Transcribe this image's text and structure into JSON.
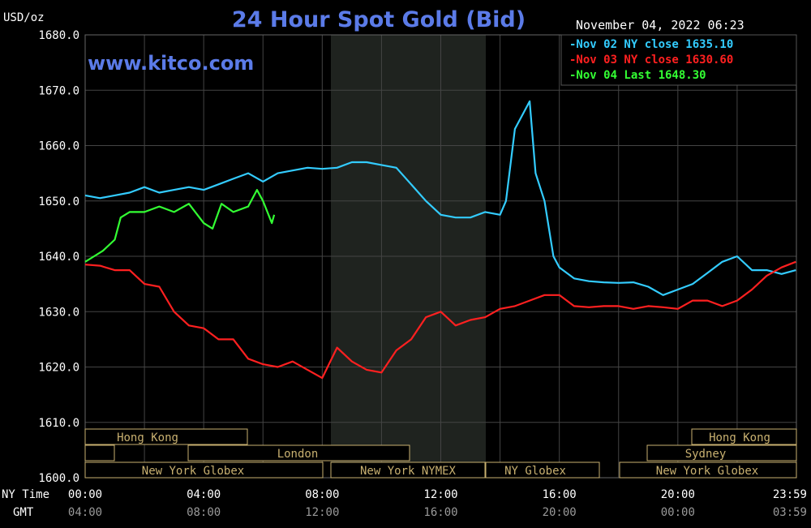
{
  "chart_data": {
    "type": "line",
    "title": "24 Hour Spot Gold (Bid)",
    "unit_label": "USD/oz",
    "watermark": "www.kitco.com",
    "timestamp": "November 04, 2022 06:23",
    "ylim": [
      1600,
      1680
    ],
    "yticks": [
      "1680.0",
      "1670.0",
      "1660.0",
      "1650.0",
      "1640.0",
      "1630.0",
      "1620.0",
      "1610.0",
      "1600.0"
    ],
    "x_row_labels": {
      "ny": "NY Time",
      "gmt": "GMT"
    },
    "xticks_ny": [
      "00:00",
      "04:00",
      "08:00",
      "12:00",
      "16:00",
      "20:00",
      "23:59"
    ],
    "xticks_gmt": [
      "04:00",
      "08:00",
      "12:00",
      "16:00",
      "20:00",
      "00:00",
      "03:59"
    ],
    "legend": [
      {
        "text": "Nov 02 NY close 1635.10",
        "color": "#33ccff"
      },
      {
        "text": "Nov 03 NY close 1630.60",
        "color": "#ff2020"
      },
      {
        "text": "Nov 04 Last 1648.30",
        "color": "#33ff33"
      }
    ],
    "series": [
      {
        "name": "Nov 02",
        "color": "#33ccff",
        "x": [
          0,
          0.5,
          1,
          1.5,
          2,
          2.5,
          3,
          3.5,
          4,
          4.5,
          5,
          5.5,
          6,
          6.5,
          7,
          7.5,
          8,
          8.5,
          9,
          9.5,
          10,
          10.5,
          11,
          11.5,
          12,
          12.5,
          13,
          13.5,
          14,
          14.2,
          14.5,
          14.8,
          15,
          15.2,
          15.5,
          15.8,
          16,
          16.5,
          17,
          17.5,
          18,
          18.5,
          19,
          19.5,
          20,
          20.5,
          21,
          21.5,
          22,
          22.5,
          23,
          23.5,
          23.98
        ],
        "values": [
          1651,
          1650.5,
          1651,
          1651.5,
          1652.5,
          1651.5,
          1652,
          1652.5,
          1652,
          1653,
          1654,
          1655,
          1653.5,
          1655,
          1655.5,
          1656,
          1655.8,
          1656,
          1657,
          1657,
          1656.5,
          1656,
          1653,
          1650,
          1647.5,
          1647,
          1647,
          1648,
          1647.5,
          1650,
          1663,
          1666,
          1668,
          1655,
          1650,
          1640,
          1638,
          1636,
          1635.5,
          1635.3,
          1635.2,
          1635.3,
          1634.5,
          1633,
          1634,
          1635,
          1637,
          1639,
          1640,
          1637.5,
          1637.5,
          1636.8,
          1637.5
        ]
      },
      {
        "name": "Nov 03",
        "color": "#ff2020",
        "x": [
          0,
          0.5,
          1,
          1.5,
          2,
          2.5,
          3,
          3.5,
          4,
          4.5,
          5,
          5.5,
          6,
          6.5,
          7,
          7.5,
          8,
          8.5,
          9,
          9.5,
          10,
          10.5,
          11,
          11.5,
          12,
          12.5,
          13,
          13.5,
          14,
          14.5,
          15,
          15.5,
          16,
          16.5,
          17,
          17.5,
          18,
          18.5,
          19,
          19.5,
          20,
          20.5,
          21,
          21.5,
          22,
          22.5,
          23,
          23.5,
          23.98
        ],
        "values": [
          1638.5,
          1638.3,
          1637.5,
          1637.5,
          1635,
          1634.5,
          1630,
          1627.5,
          1627,
          1625,
          1625,
          1621.5,
          1620.5,
          1620,
          1621,
          1619.5,
          1618,
          1623.5,
          1621,
          1619.5,
          1619,
          1623,
          1625,
          1629,
          1630,
          1627.5,
          1628.5,
          1629,
          1630.5,
          1631,
          1632,
          1633,
          1633,
          1631,
          1630.8,
          1631,
          1631,
          1630.5,
          1631,
          1630.8,
          1630.5,
          1632,
          1632,
          1631,
          1632,
          1634,
          1636.5,
          1638,
          1639
        ]
      },
      {
        "name": "Nov 04",
        "color": "#33ff33",
        "x": [
          0,
          0.3,
          0.6,
          1,
          1.2,
          1.5,
          2,
          2.5,
          3,
          3.5,
          4,
          4.3,
          4.6,
          5,
          5.5,
          5.8,
          6,
          6.3,
          6.38
        ],
        "values": [
          1639,
          1640,
          1641,
          1643,
          1647,
          1648,
          1648,
          1649,
          1648,
          1649.5,
          1646,
          1645,
          1649.5,
          1648,
          1649,
          1652,
          1650,
          1646,
          1647.5
        ]
      }
    ],
    "sessions": {
      "hong_kong_label": "Hong Kong",
      "london_label": "London",
      "sydney_label": "Sydney",
      "ny_globex_label": "New York Globex",
      "ny_nymex_label": "New York NYMEX",
      "ny_globex_short_label": "NY Globex"
    }
  }
}
